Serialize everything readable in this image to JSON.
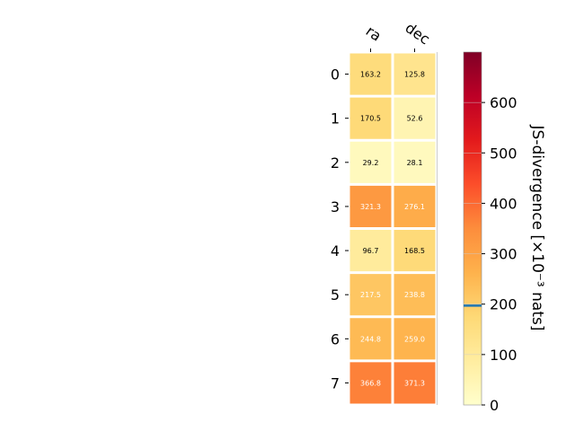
{
  "chart_data": {
    "type": "heatmap",
    "columns": [
      "ra",
      "dec"
    ],
    "rows": [
      "0",
      "1",
      "2",
      "3",
      "4",
      "5",
      "6",
      "7"
    ],
    "values": [
      [
        163.2,
        125.8
      ],
      [
        170.5,
        52.6
      ],
      [
        29.2,
        28.1
      ],
      [
        321.3,
        276.1
      ],
      [
        96.7,
        168.5
      ],
      [
        217.5,
        238.8
      ],
      [
        244.8,
        259.0
      ],
      [
        366.8,
        371.3
      ]
    ],
    "colorbar": {
      "label": "JS-divergence [×10⁻³ nats]",
      "range": [
        0,
        700
      ],
      "ticks": [
        0,
        100,
        200,
        300,
        400,
        500,
        600
      ],
      "marker_value": 197,
      "marker_color": "#1f77b4",
      "colormap": [
        "#ffffcc",
        "#ffeda0",
        "#fed976",
        "#feb24c",
        "#fd8d3c",
        "#fc4e2a",
        "#e31a1c",
        "#bd0026",
        "#800026"
      ]
    },
    "grid": false
  }
}
